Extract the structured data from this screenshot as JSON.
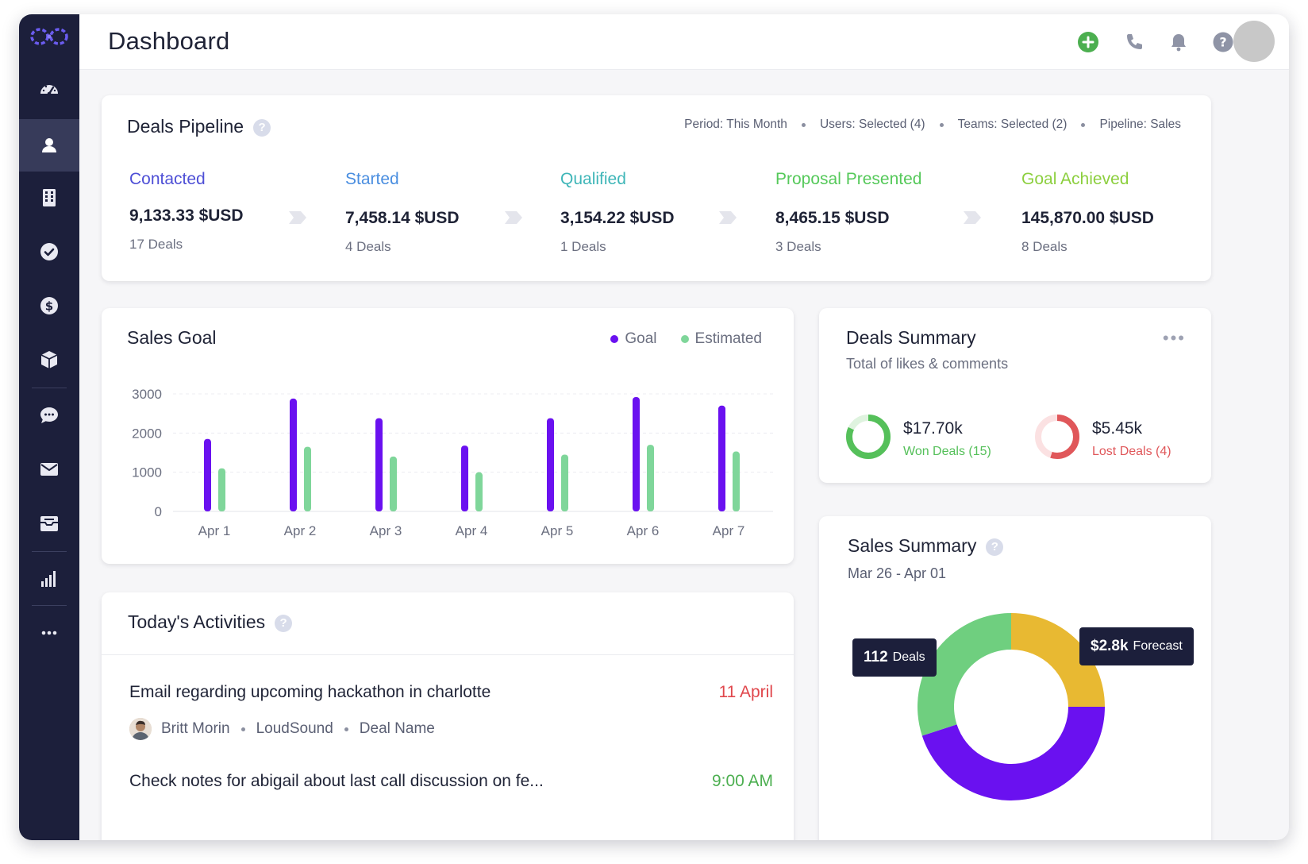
{
  "app": {
    "title": "Dashboard"
  },
  "sidebar": {
    "items": [
      {
        "icon": "speedometer-icon",
        "active": false
      },
      {
        "icon": "person-icon",
        "active": true
      },
      {
        "icon": "building-icon",
        "active": false
      },
      {
        "icon": "check-circle-icon",
        "active": false
      },
      {
        "icon": "dollar-icon",
        "active": false
      },
      {
        "icon": "box-icon",
        "active": false
      },
      {
        "icon": "chat-bubble-icon",
        "active": false
      },
      {
        "icon": "mail-icon",
        "active": false
      },
      {
        "icon": "inbox-icon",
        "active": false
      },
      {
        "icon": "bar-chart-icon",
        "active": false
      },
      {
        "icon": "more-horizontal-icon",
        "active": false
      }
    ]
  },
  "topbar": {
    "icons": [
      "add-circle-icon",
      "phone-icon",
      "bell-icon",
      "help-icon"
    ],
    "accent": "#4caf50"
  },
  "pipeline": {
    "title": "Deals Pipeline",
    "filters": [
      "Period: This Month",
      "Users: Selected (4)",
      "Teams: Selected (2)",
      "Pipeline: Sales"
    ],
    "stages": [
      {
        "label": "Contacted",
        "amount": "9,133.33 $USD",
        "count": "17 Deals",
        "color": "#4e4fd6"
      },
      {
        "label": "Started",
        "amount": "7,458.14 $USD",
        "count": "4 Deals",
        "color": "#4a8ee0"
      },
      {
        "label": "Qualified",
        "amount": "3,154.22 $USD",
        "count": "1 Deals",
        "color": "#3fb6b8"
      },
      {
        "label": "Proposal Presented",
        "amount": "8,465.15 $USD",
        "count": "3 Deals",
        "color": "#55c95a"
      },
      {
        "label": "Goal Achieved",
        "amount": "145,870.00 $USD",
        "count": "8 Deals",
        "color": "#8ccf3e"
      }
    ]
  },
  "sales_goal": {
    "title": "Sales Goal",
    "legend": [
      {
        "name": "Goal",
        "color": "#6a11f0"
      },
      {
        "name": "Estimated",
        "color": "#7fd69a"
      }
    ]
  },
  "chart_data": {
    "type": "bar",
    "title": "Sales Goal",
    "categories": [
      "Apr 1",
      "Apr 2",
      "Apr 3",
      "Apr 4",
      "Apr 5",
      "Apr 6",
      "Apr 7"
    ],
    "series": [
      {
        "name": "Goal",
        "values": [
          1850,
          2880,
          2380,
          1680,
          2380,
          2920,
          2700
        ],
        "color": "#6a11f0"
      },
      {
        "name": "Estimated",
        "values": [
          1100,
          1650,
          1400,
          1000,
          1450,
          1700,
          1530
        ],
        "color": "#7fd69a"
      }
    ],
    "yticks": [
      0,
      1000,
      2000,
      3000
    ],
    "ylim": [
      0,
      3000
    ],
    "grid": true,
    "legend": "top-right"
  },
  "deals_summary": {
    "title": "Deals Summary",
    "subtitle": "Total of likes & comments",
    "won": {
      "amount": "$17.70k",
      "label": "Won Deals (15)",
      "color": "#55c05a",
      "fraction": 0.82
    },
    "lost": {
      "amount": "$5.45k",
      "label": "Lost Deals (4)",
      "color": "#e0575a",
      "fraction": 0.55
    }
  },
  "activities": {
    "title": "Today's Activities",
    "items": [
      {
        "title": "Email regarding upcoming hackathon in charlotte",
        "time": "11 April",
        "time_color": "#e0474c",
        "person": "Britt Morin",
        "company": "LoudSound",
        "deal": "Deal Name"
      },
      {
        "title": "Check notes for abigail about last call discussion on fe...",
        "time": "9:00 AM",
        "time_color": "#4caf50"
      }
    ]
  },
  "sales_summary": {
    "title": "Sales Summary",
    "date_range": "Mar 26 - Apr 01",
    "deals_tooltip": {
      "value": "112",
      "label": "Deals"
    },
    "forecast_tooltip": {
      "value": "$2.8k",
      "label": "Forecast"
    },
    "segments": [
      {
        "name": "yellow",
        "color": "#e8b932",
        "fraction": 0.25
      },
      {
        "name": "purple",
        "color": "#6a11f0",
        "fraction": 0.45
      },
      {
        "name": "green",
        "color": "#6fcf7f",
        "fraction": 0.3
      }
    ]
  }
}
